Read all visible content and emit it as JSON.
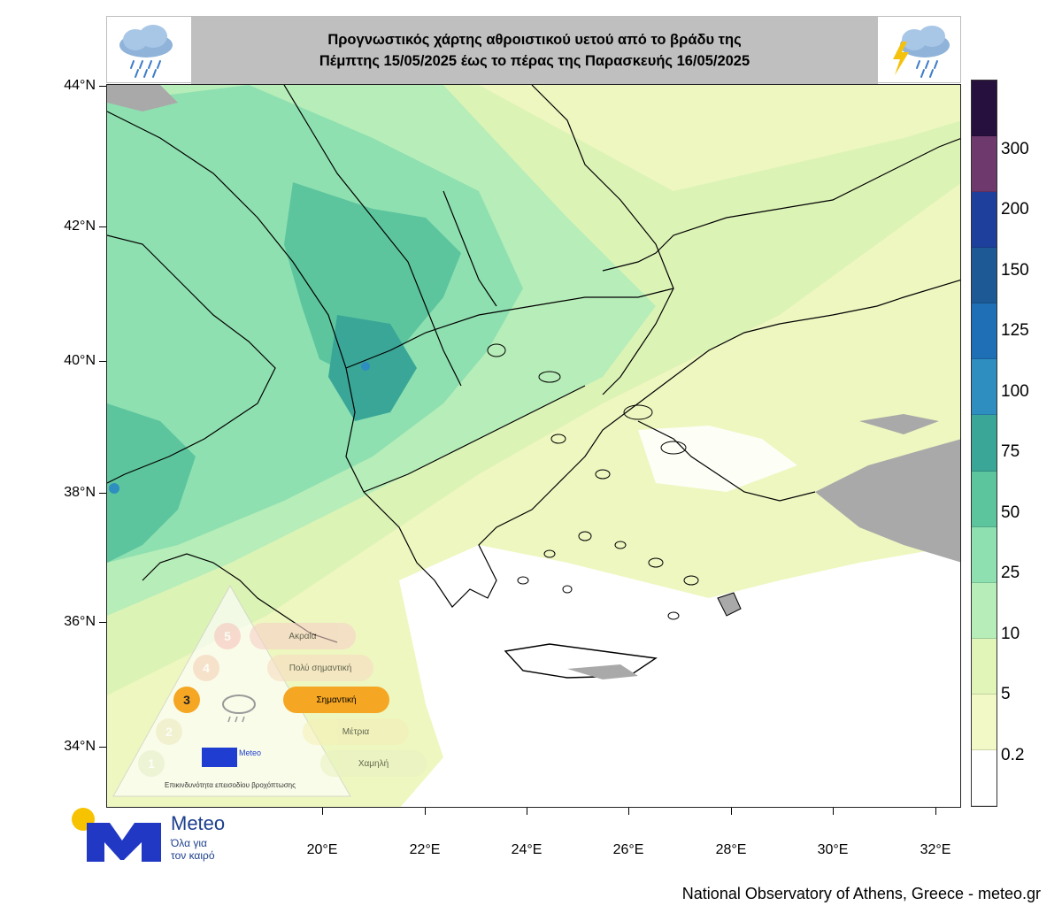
{
  "title": {
    "line1": "Προγνωστικός χάρτης αθροιστικού υετού από το βράδυ της",
    "line2": "Πέμπτης 15/05/2025 έως το πέρας της Παρασκευής 16/05/2025"
  },
  "icons": {
    "left": "rain-cloud-icon",
    "right": "thunderstorm-cloud-icon"
  },
  "axes": {
    "latitudes": [
      "44°N",
      "42°N",
      "40°N",
      "38°N",
      "36°N",
      "34°N"
    ],
    "longitudes": [
      "20°E",
      "22°E",
      "24°E",
      "26°E",
      "28°E",
      "30°E",
      "32°E"
    ]
  },
  "legend": {
    "labels": [
      "0.2",
      "5",
      "10",
      "25",
      "50",
      "75",
      "100",
      "125",
      "150",
      "200",
      "300"
    ],
    "colors": [
      "#ffffff",
      "#f3f9c6",
      "#e1f5b8",
      "#b6edb8",
      "#8ee0b0",
      "#5cc59e",
      "#3aa697",
      "#2f8ec0",
      "#1e6fb5",
      "#1d5a95",
      "#1f3f9c",
      "#6e3a6e",
      "#26103e"
    ]
  },
  "warning_scale": {
    "levels": [
      {
        "num": "5",
        "label": "Ακραία"
      },
      {
        "num": "4",
        "label": "Πολύ σημαντική"
      },
      {
        "num": "3",
        "label": "Σημαντική"
      },
      {
        "num": "2",
        "label": "Μέτρια"
      },
      {
        "num": "1",
        "label": "Χαμηλή"
      }
    ],
    "active_level": 3,
    "caption": "Επικινδυνότητα επεισοδίου βροχόπτωσης",
    "brand": "Meteo"
  },
  "logo": {
    "name": "Meteo",
    "slogan": "Όλα για τον καιρό"
  },
  "credit": "National Observatory of Athens, Greece - meteo.gr"
}
